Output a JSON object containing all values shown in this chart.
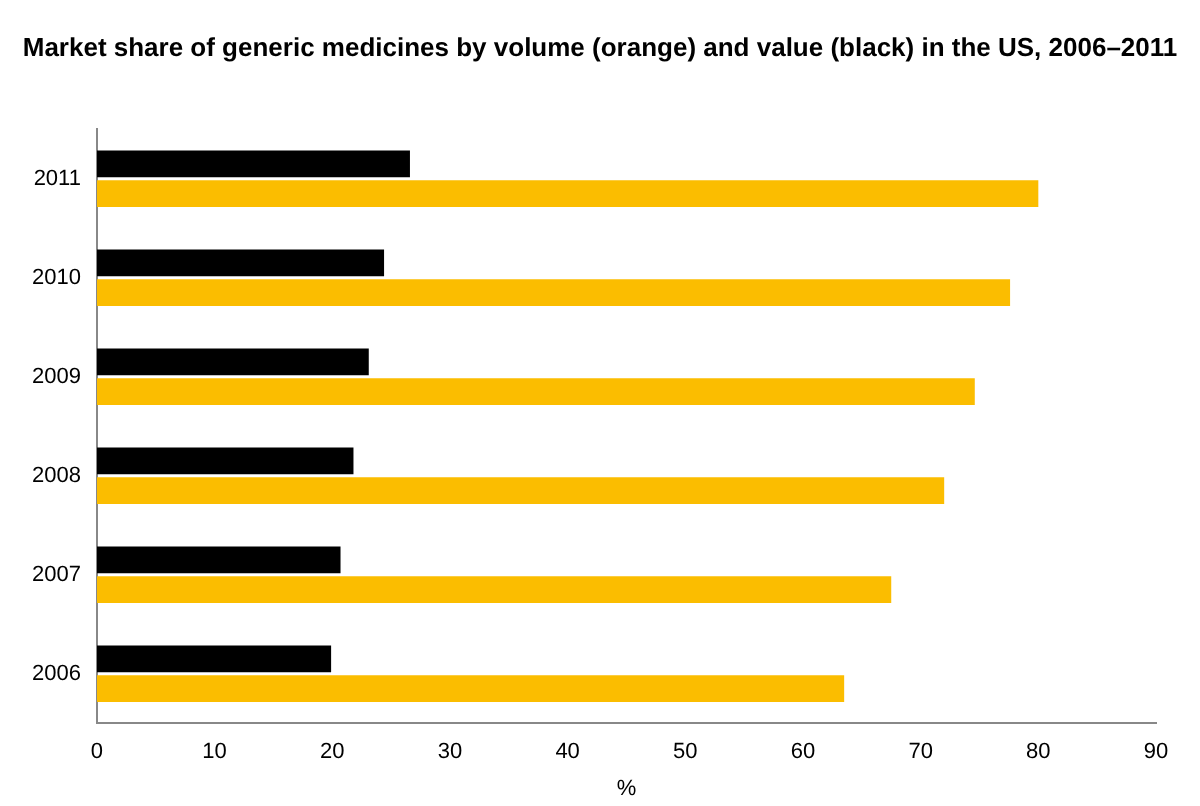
{
  "chart_data": {
    "type": "bar",
    "orientation": "horizontal",
    "title": "Market share of generic medicines by volume (orange) and value (black) in the US, 2006–2011",
    "xlabel": "%",
    "categories": [
      "2011",
      "2010",
      "2009",
      "2008",
      "2007",
      "2006"
    ],
    "series": [
      {
        "color": "#000000",
        "values": [
          26.6,
          24.4,
          23.1,
          21.8,
          20.7,
          19.9
        ]
      },
      {
        "color": "#fbbd00",
        "values": [
          80.0,
          77.6,
          74.6,
          72.0,
          67.5,
          63.5
        ]
      }
    ],
    "xlim": [
      0,
      90
    ],
    "xticks": [
      0,
      10,
      20,
      30,
      40,
      50,
      60,
      70,
      80,
      90
    ],
    "grid": false,
    "legend": false
  }
}
